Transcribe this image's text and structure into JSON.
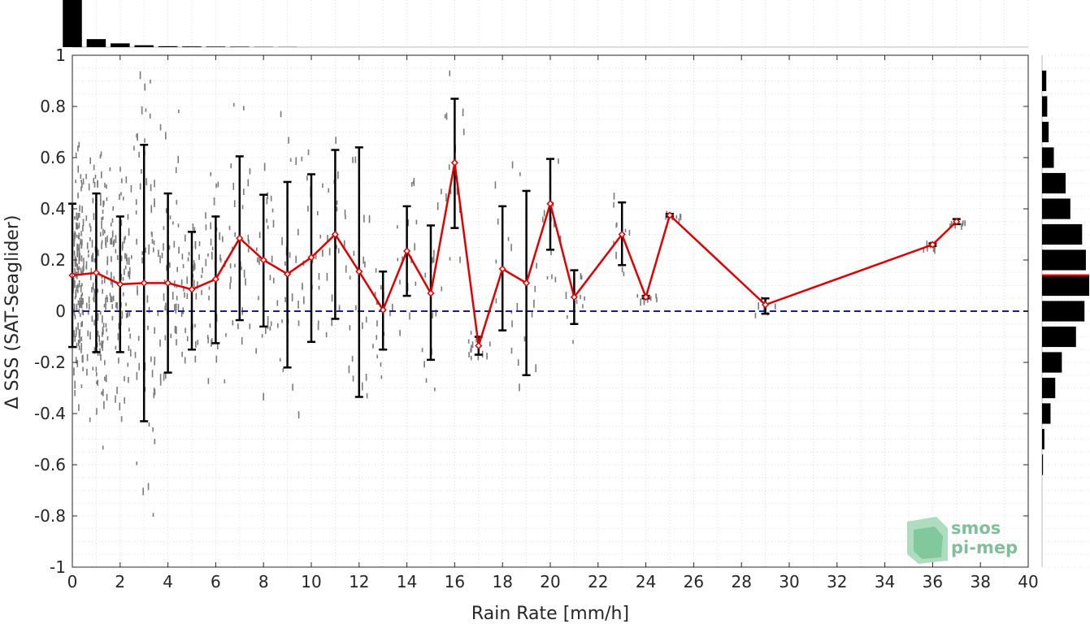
{
  "chart_data": {
    "type": "scatter",
    "xlabel": "Rain Rate [mm/h]",
    "ylabel": "Δ SSS (SAT-Seaglider)",
    "xlim": [
      0,
      40
    ],
    "ylim": [
      -1,
      1
    ],
    "x_ticks": [
      "0",
      "2",
      "4",
      "6",
      "8",
      "10",
      "12",
      "14",
      "16",
      "18",
      "20",
      "22",
      "24",
      "26",
      "28",
      "30",
      "32",
      "34",
      "36",
      "38",
      "40"
    ],
    "y_ticks": [
      "1",
      "0.8",
      "0.6",
      "0.4",
      "0.2",
      "0",
      "-0.2",
      "-0.4",
      "-0.6",
      "-0.8",
      "-1"
    ],
    "grid": true,
    "zero_line": {
      "y": 0,
      "style": "dashed",
      "color": "#1a1aa6"
    },
    "colors": {
      "mean_line": "#e00000",
      "error_bars": "#000000",
      "scatter": "#7a7a7a",
      "histograms": "#000000"
    },
    "mean_series": {
      "x": [
        0,
        1,
        2,
        3,
        4,
        5,
        6,
        7,
        8,
        9,
        10,
        11,
        12,
        13,
        14,
        15,
        16,
        17,
        18,
        19,
        20,
        21,
        23,
        24,
        25,
        29,
        36,
        37
      ],
      "y": [
        0.14,
        0.15,
        0.105,
        0.11,
        0.11,
        0.085,
        0.125,
        0.285,
        0.2,
        0.145,
        0.21,
        0.3,
        0.155,
        0.005,
        0.235,
        0.07,
        0.58,
        -0.135,
        0.165,
        0.11,
        0.42,
        0.055,
        0.3,
        0.055,
        0.375,
        0.025,
        0.26,
        0.35
      ],
      "err_low": [
        -0.14,
        -0.16,
        -0.16,
        -0.43,
        -0.24,
        -0.15,
        -0.125,
        -0.035,
        -0.06,
        -0.22,
        -0.12,
        -0.03,
        -0.335,
        -0.15,
        0.06,
        -0.19,
        0.325,
        -0.17,
        -0.075,
        -0.25,
        0.24,
        -0.05,
        0.18,
        0.05,
        0.37,
        -0.01,
        0.255,
        0.34
      ],
      "err_high": [
        0.42,
        0.46,
        0.37,
        0.65,
        0.46,
        0.31,
        0.37,
        0.605,
        0.455,
        0.505,
        0.535,
        0.63,
        0.64,
        0.155,
        0.41,
        0.335,
        0.83,
        -0.1,
        0.41,
        0.47,
        0.595,
        0.16,
        0.425,
        0.06,
        0.38,
        0.05,
        0.265,
        0.36
      ]
    },
    "top_histogram": {
      "bin_centers": [
        0,
        1,
        2,
        3,
        4,
        5,
        6,
        7,
        8,
        9
      ],
      "relative_counts": [
        1.0,
        0.17,
        0.08,
        0.04,
        0.02,
        0.015,
        0.012,
        0.01,
        0.006,
        0.004
      ]
    },
    "right_histogram": {
      "bin_centers": [
        0.9,
        0.8,
        0.7,
        0.6,
        0.5,
        0.4,
        0.3,
        0.2,
        0.1,
        0.0,
        -0.1,
        -0.2,
        -0.3,
        -0.4,
        -0.5,
        -0.6
      ],
      "relative_counts": [
        0.09,
        0.11,
        0.14,
        0.25,
        0.5,
        0.6,
        0.85,
        0.93,
        1.0,
        0.9,
        0.72,
        0.42,
        0.28,
        0.18,
        0.05,
        0.02
      ],
      "mean_marker": 0.14
    }
  },
  "logo": {
    "line1": "smos",
    "line2": "pi-mep"
  }
}
